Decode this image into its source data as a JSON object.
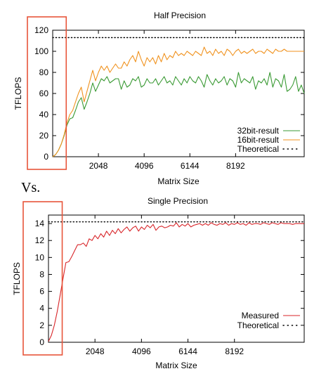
{
  "separator_text": "Vs.",
  "chart_data": [
    {
      "type": "line",
      "title": "Half Precision",
      "xlabel": "Matrix Size",
      "ylabel": "TFLOPS",
      "xlim": [
        0,
        11264
      ],
      "ylim": [
        0,
        120
      ],
      "xticks": [
        2048,
        4096,
        6144,
        8192
      ],
      "xtick_labels": [
        "2048",
        "4096",
        "6144",
        "8192"
      ],
      "yticks": [
        0,
        20,
        40,
        60,
        80,
        100,
        120
      ],
      "ytick_labels": [
        "0",
        "20",
        "40",
        "60",
        "80",
        "100",
        "120"
      ],
      "grid": false,
      "legend": "bottom-right",
      "highlight_box": {
        "x_range": [
          0,
          512
        ],
        "color": "#e8553a"
      },
      "x": [
        0,
        128,
        256,
        384,
        512,
        640,
        768,
        896,
        1024,
        1152,
        1280,
        1408,
        1536,
        1664,
        1792,
        1920,
        2048,
        2176,
        2304,
        2432,
        2560,
        2688,
        2816,
        2944,
        3072,
        3200,
        3328,
        3456,
        3584,
        3712,
        3840,
        3968,
        4096,
        4224,
        4352,
        4480,
        4608,
        4736,
        4864,
        4992,
        5120,
        5248,
        5376,
        5504,
        5632,
        5760,
        5888,
        6016,
        6144,
        6272,
        6400,
        6528,
        6656,
        6784,
        6912,
        7040,
        7168,
        7296,
        7424,
        7552,
        7680,
        7808,
        7936,
        8064,
        8192,
        8320,
        8448,
        8576,
        8704,
        8832,
        8960,
        9088,
        9216,
        9344,
        9472,
        9600,
        9728,
        9856,
        9984,
        10112,
        10240,
        10368,
        10496,
        10624,
        10752,
        10880,
        11008,
        11136,
        11264
      ],
      "series": [
        {
          "name": "32bit-result",
          "color": "#3a9a34",
          "style": "solid",
          "values": [
            0,
            2,
            6,
            12,
            20,
            30,
            36,
            37,
            44,
            52,
            56,
            45,
            52,
            60,
            70,
            62,
            68,
            74,
            72,
            76,
            70,
            72,
            74,
            74,
            64,
            72,
            66,
            68,
            74,
            72,
            76,
            66,
            68,
            74,
            70,
            70,
            74,
            68,
            72,
            76,
            70,
            72,
            68,
            76,
            72,
            68,
            74,
            70,
            76,
            72,
            70,
            76,
            72,
            66,
            78,
            72,
            68,
            74,
            70,
            72,
            76,
            68,
            74,
            72,
            66,
            80,
            70,
            74,
            72,
            70,
            76,
            64,
            72,
            70,
            74,
            68,
            80,
            66,
            74,
            72,
            66,
            78,
            62,
            64,
            68,
            76,
            62,
            68,
            60
          ]
        },
        {
          "name": "16bit-result",
          "color": "#f0921e",
          "style": "solid",
          "values": [
            0,
            2,
            6,
            12,
            21,
            32,
            40,
            44,
            52,
            60,
            66,
            52,
            62,
            72,
            82,
            72,
            80,
            86,
            82,
            86,
            80,
            84,
            88,
            84,
            84,
            90,
            86,
            92,
            96,
            90,
            100,
            92,
            86,
            94,
            90,
            94,
            88,
            96,
            90,
            98,
            92,
            96,
            94,
            100,
            96,
            98,
            96,
            100,
            98,
            96,
            100,
            98,
            96,
            104,
            98,
            100,
            96,
            102,
            98,
            100,
            96,
            102,
            100,
            96,
            100,
            102,
            98,
            100,
            98,
            100,
            102,
            98,
            100,
            100,
            98,
            102,
            100,
            98,
            102,
            100,
            100,
            102,
            100,
            100,
            100,
            100,
            100,
            100,
            100
          ]
        },
        {
          "name": "Theoretical",
          "color": "#000000",
          "style": "dotted",
          "constant": 113
        }
      ]
    },
    {
      "type": "line",
      "title": "Single Precision",
      "xlabel": "Matrix Size",
      "ylabel": "TFLOPS",
      "xlim": [
        0,
        11264
      ],
      "ylim": [
        0,
        15
      ],
      "xticks": [
        2048,
        4096,
        6144,
        8192
      ],
      "xtick_labels": [
        "2048",
        "4096",
        "6144",
        "8192"
      ],
      "yticks": [
        0,
        2,
        4,
        6,
        8,
        10,
        12,
        14
      ],
      "ytick_labels": [
        "0",
        "2",
        "4",
        "6",
        "8",
        "10",
        "12",
        "14"
      ],
      "grid": false,
      "legend": "bottom-right",
      "highlight_box": {
        "x_range": [
          0,
          512
        ],
        "color": "#e8553a"
      },
      "x": [
        0,
        128,
        256,
        384,
        512,
        640,
        768,
        896,
        1024,
        1152,
        1280,
        1408,
        1536,
        1664,
        1792,
        1920,
        2048,
        2176,
        2304,
        2432,
        2560,
        2688,
        2816,
        2944,
        3072,
        3200,
        3328,
        3456,
        3584,
        3712,
        3840,
        3968,
        4096,
        4224,
        4352,
        4480,
        4608,
        4736,
        4864,
        4992,
        5120,
        5248,
        5376,
        5504,
        5632,
        5760,
        5888,
        6016,
        6144,
        6272,
        6400,
        6528,
        6656,
        6784,
        6912,
        7040,
        7168,
        7296,
        7424,
        7552,
        7680,
        7808,
        7936,
        8064,
        8192,
        8320,
        8448,
        8576,
        8704,
        8832,
        8960,
        9088,
        9216,
        9344,
        9472,
        9600,
        9728,
        9856,
        9984,
        10112,
        10240,
        10368,
        10496,
        10624,
        10752,
        10880,
        11008,
        11136,
        11264
      ],
      "series": [
        {
          "name": "Measured",
          "color": "#d8262a",
          "style": "solid",
          "values": [
            0.1,
            0.8,
            2.0,
            3.6,
            5.5,
            7.5,
            9.4,
            9.5,
            10.1,
            10.8,
            11.5,
            11.5,
            11.7,
            11.3,
            12.2,
            12.0,
            12.6,
            12.2,
            12.8,
            12.4,
            13.1,
            12.6,
            13.2,
            12.8,
            13.4,
            12.9,
            13.3,
            13.6,
            13.1,
            13.5,
            13.7,
            13.1,
            13.6,
            13.3,
            13.8,
            13.5,
            13.9,
            13.2,
            13.6,
            13.7,
            13.5,
            13.6,
            13.8,
            13.7,
            14.1,
            13.6,
            13.9,
            13.7,
            14.0,
            13.6,
            13.8,
            13.9,
            14.0,
            13.8,
            14.0,
            13.8,
            14.1,
            13.9,
            13.8,
            14.0,
            13.9,
            14.1,
            13.8,
            14.0,
            13.9,
            14.1,
            13.9,
            14.0,
            13.8,
            14.1,
            13.9,
            14.0,
            14.0,
            13.9,
            14.1,
            14.0,
            13.9,
            14.1,
            14.0,
            13.9,
            14.1,
            14.0,
            14.0,
            14.0,
            13.9,
            14.0,
            14.0,
            14.0,
            14.0
          ]
        },
        {
          "name": "Theoretical",
          "color": "#000000",
          "style": "dotted",
          "constant": 14.2
        }
      ]
    }
  ]
}
